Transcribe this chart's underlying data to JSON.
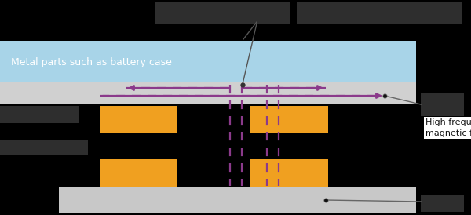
{
  "fig_width": 6.0,
  "fig_height": 2.74,
  "dpi": 100,
  "bg_color": "#000000",
  "box_color": "#2e2e2e",
  "metal_color": "#a8d4e8",
  "sheet_color": "#d0d0d0",
  "coil_color": "#f0a020",
  "dark_color": "#0d0d0d",
  "base_color": "#c8c8c8",
  "arrow_color": "#8B3A8B",
  "metal_text": "Metal parts such as battery case",
  "flux_text": "High frequency\nmagnetic flux"
}
